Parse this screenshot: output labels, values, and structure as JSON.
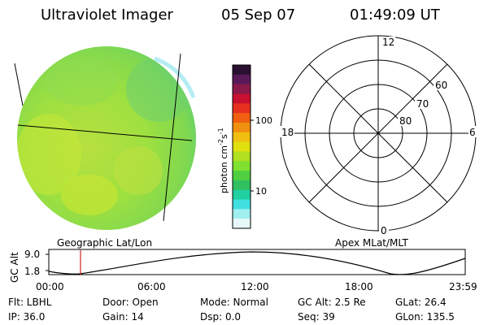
{
  "header": {
    "instrument": "Ultraviolet Imager",
    "date": "05 Sep 07",
    "time": "01:49:09 UT"
  },
  "colorbar": {
    "ticks": [
      "100",
      "10"
    ],
    "label_main": "photon cm",
    "label_exp1": "-2",
    "label_mid": "s",
    "label_exp2": "-1",
    "colors": [
      "#2a1030",
      "#5a1a5a",
      "#8a1a4a",
      "#c81030",
      "#e83020",
      "#f06010",
      "#f09010",
      "#f0c010",
      "#e0e010",
      "#b0e020",
      "#80e030",
      "#50d040",
      "#30c060",
      "#20d0a0",
      "#40e0e0",
      "#a0f0f0",
      "#e8f8f8"
    ]
  },
  "polar_plot": {
    "mlt_labels": {
      "top": "12",
      "bottom": "0",
      "left": "18",
      "right": "6"
    },
    "lat_labels": [
      "60",
      "70",
      "80"
    ]
  },
  "captions": {
    "left": "Geographic Lat/Lon",
    "right": "Apex MLat/MLT"
  },
  "altitude_plot": {
    "ylabel": "GC Alt",
    "y_ticks": [
      "9.0",
      "1.8"
    ],
    "x_ticks": [
      "00:00",
      "06:00",
      "12:00",
      "18:00",
      "23:59"
    ]
  },
  "info": {
    "filter": "Flt: LBHL",
    "ip": "IP: 36.0",
    "door": "Door: Open",
    "gain": "Gain: 14",
    "mode": "Mode: Normal",
    "dsp": "Dsp:    0.0",
    "gc_alt": "GC Alt: 2.5 Re",
    "seq": "Seq: 39",
    "glat": "GLat:  26.4",
    "glon": "GLon: 135.5"
  }
}
